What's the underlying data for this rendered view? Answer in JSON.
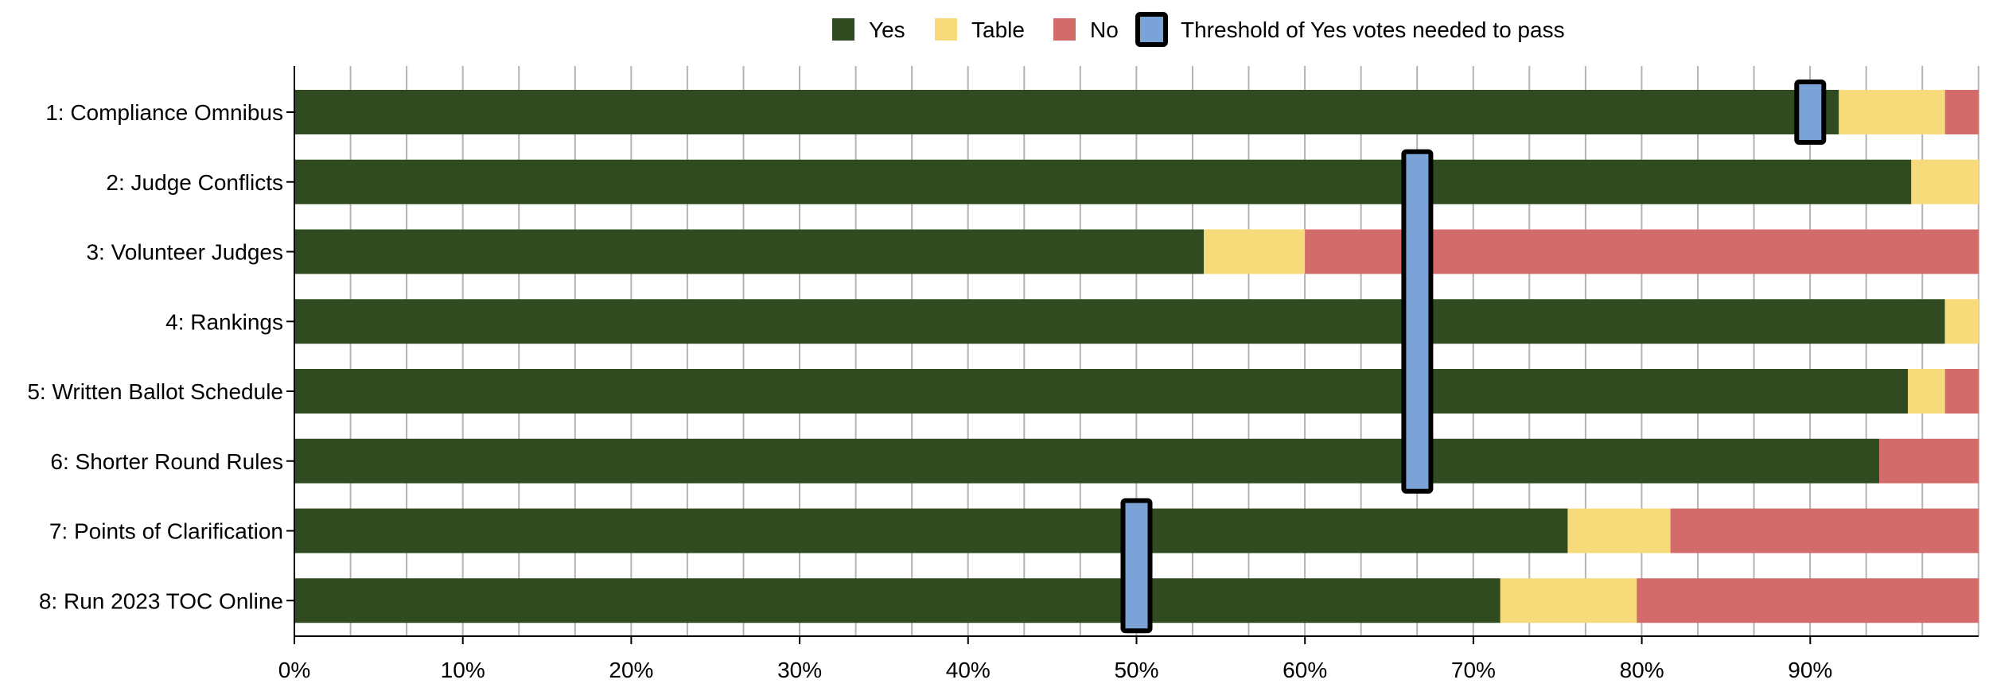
{
  "chart_data": {
    "type": "bar",
    "orientation": "horizontal",
    "stacked": true,
    "categories": [
      "1: Compliance Omnibus",
      "2: Judge Conflicts",
      "3: Volunteer Judges",
      "4: Rankings",
      "5: Written Ballot Schedule",
      "6: Shorter Round Rules",
      "7: Points of Clarification",
      "8: Run 2023 TOC Online"
    ],
    "series": [
      {
        "name": "Yes",
        "color": "#2f4b1f",
        "values": [
          91.7,
          96.0,
          54.0,
          98.0,
          95.8,
          94.1,
          75.6,
          71.6
        ]
      },
      {
        "name": "Table",
        "color": "#f7da7a",
        "values": [
          6.3,
          4.0,
          6.0,
          2.0,
          2.2,
          0.0,
          6.1,
          8.1
        ]
      },
      {
        "name": "No",
        "color": "#d46b6b",
        "values": [
          2.0,
          0.0,
          40.0,
          0.0,
          2.0,
          5.9,
          18.3,
          20.3
        ]
      }
    ],
    "threshold": {
      "name": "Threshold of Yes votes needed to pass",
      "color": "#7ba3d8",
      "border_color": "#000000",
      "groups": [
        {
          "value": 90,
          "rows": [
            0
          ]
        },
        {
          "value": 66.67,
          "rows": [
            1,
            2,
            3,
            4,
            5
          ]
        },
        {
          "value": 50,
          "rows": [
            6,
            7
          ]
        }
      ]
    },
    "xlim": [
      0,
      100
    ],
    "xticks": [
      "0%",
      "10%",
      "20%",
      "30%",
      "40%",
      "50%",
      "60%",
      "70%",
      "80%",
      "90%"
    ],
    "minor_grid_step": 3.333,
    "grid": true,
    "legend_position": "top",
    "title": "",
    "xlabel": "",
    "ylabel": ""
  }
}
